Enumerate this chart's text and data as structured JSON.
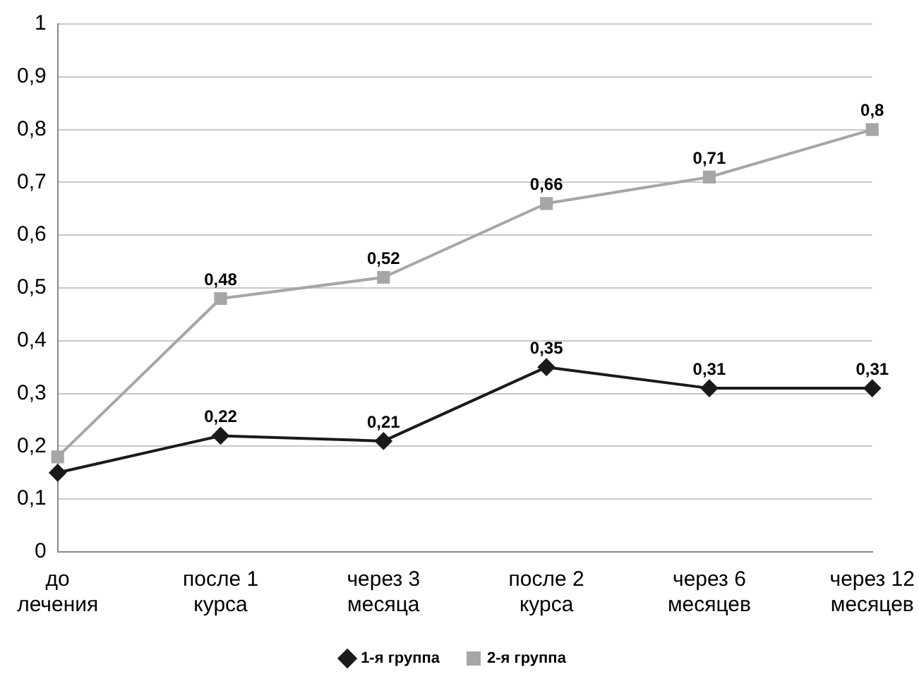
{
  "chart_data": {
    "type": "line",
    "categories": [
      "до лечения",
      "после 1 курса",
      "через 3 месяца",
      "после 2 курса",
      "через 6 месяцев",
      "через 12 месяцев"
    ],
    "series": [
      {
        "name": "1-я группа",
        "color": "#1a1a1a",
        "marker": "diamond",
        "values": [
          0.15,
          0.22,
          0.21,
          0.35,
          0.31,
          0.31
        ],
        "value_labels": [
          null,
          "0,22",
          "0,21",
          "0,35",
          "0,31",
          "0,31"
        ]
      },
      {
        "name": "2-я группа",
        "color": "#a6a6a6",
        "marker": "square",
        "values": [
          0.18,
          0.48,
          0.52,
          0.66,
          0.71,
          0.8
        ],
        "value_labels": [
          null,
          "0,48",
          "0,52",
          "0,66",
          "0,71",
          "0,8"
        ]
      }
    ],
    "ylim": [
      0,
      1
    ],
    "yticks": [
      0,
      {
        "value": 0.1,
        "label": "0,1"
      },
      {
        "value": 0.2,
        "label": "0,2"
      },
      {
        "value": 0.3,
        "label": "0,3"
      },
      {
        "value": 0.4,
        "label": "0,4"
      },
      {
        "value": 0.5,
        "label": "0,5"
      },
      {
        "value": 0.6,
        "label": "0,6"
      },
      {
        "value": 0.7,
        "label": "0,7"
      },
      {
        "value": 0.8,
        "label": "0,8"
      },
      {
        "value": 0.9,
        "label": "0,9"
      },
      1
    ],
    "grid": "y",
    "legend": "bottom"
  }
}
